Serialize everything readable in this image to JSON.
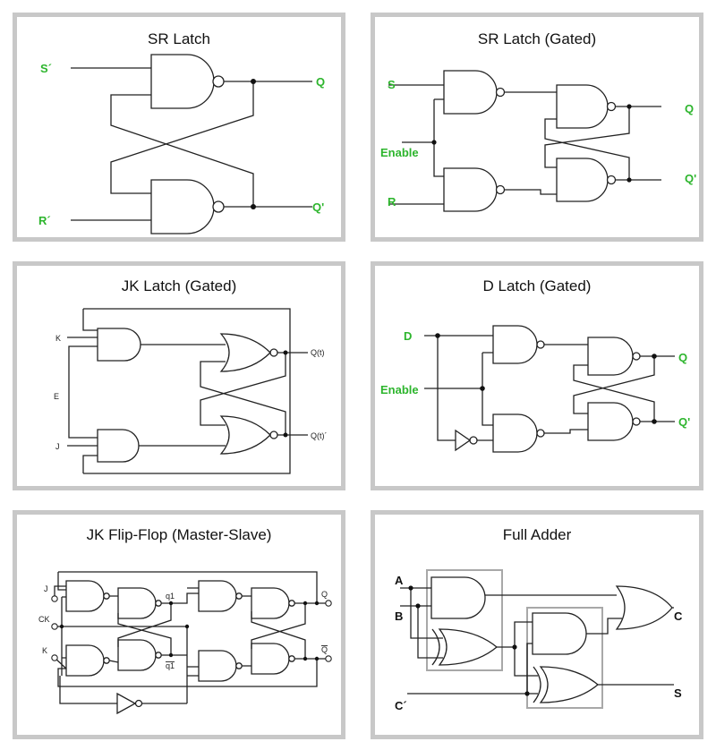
{
  "colors": {
    "panel_border": "#c8c8c8",
    "signal_label": "#2db52d",
    "wire": "#222222",
    "highlight_box": "#a8a8a8"
  },
  "panels": {
    "sr": {
      "title": "SR Latch",
      "labels": {
        "s": "S´",
        "r": "R´",
        "q": "Q",
        "qn": "Q'"
      }
    },
    "srg": {
      "title": "SR Latch (Gated)",
      "labels": {
        "s": "S",
        "enable": "Enable",
        "r": "R",
        "q": "Q",
        "qn": "Q'"
      }
    },
    "jk": {
      "title": "JK Latch (Gated)",
      "labels": {
        "k": "K",
        "e": "E",
        "j": "J",
        "q": "Q(t)",
        "qn": "Q(t)´"
      }
    },
    "d": {
      "title": "D Latch (Gated)",
      "labels": {
        "d": "D",
        "enable": "Enable",
        "q": "Q",
        "qn": "Q'"
      }
    },
    "jkff": {
      "title": "JK Flip-Flop (Master-Slave)",
      "labels": {
        "j": "J",
        "ck": "CK",
        "k": "K",
        "q1": "q1",
        "q1n": "q1",
        "q": "Q",
        "qn": "Q"
      }
    },
    "fa": {
      "title": "Full Adder",
      "labels": {
        "a": "A",
        "b": "B",
        "c_in": "C´",
        "c": "C",
        "s": "S"
      }
    }
  }
}
